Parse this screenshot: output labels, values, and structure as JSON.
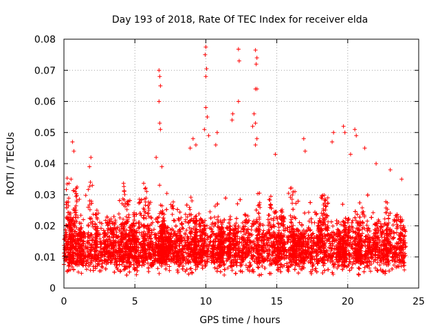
{
  "chart_data": {
    "type": "scatter",
    "title": "Day 193 of 2018, Rate Of TEC Index for receiver elda",
    "xlabel": "GPS time / hours",
    "ylabel": "ROTI / TECUs",
    "xlim": [
      0,
      25
    ],
    "ylim": [
      0,
      0.08
    ],
    "x_ticks": [
      0,
      5,
      10,
      15,
      20,
      25
    ],
    "x_tick_labels": [
      "0",
      "5",
      "10",
      "15",
      "20",
      "25"
    ],
    "y_ticks": [
      0,
      0.01,
      0.02,
      0.03,
      0.04,
      0.05,
      0.06,
      0.07,
      0.08
    ],
    "y_tick_labels": [
      "0",
      "0.01",
      "0.02",
      "0.03",
      "0.04",
      "0.05",
      "0.06",
      "0.07",
      "0.08"
    ],
    "grid": true,
    "marker": "plus",
    "color": "#ff0000",
    "series": [
      {
        "name": "ROTI",
        "description_points": [
          [
            0.6,
            0.047
          ],
          [
            0.7,
            0.044
          ],
          [
            0.5,
            0.035
          ],
          [
            1.9,
            0.042
          ],
          [
            1.8,
            0.039
          ],
          [
            2.0,
            0.033
          ],
          [
            6.7,
            0.07
          ],
          [
            6.75,
            0.068
          ],
          [
            6.8,
            0.065
          ],
          [
            6.7,
            0.06
          ],
          [
            6.75,
            0.053
          ],
          [
            6.8,
            0.051
          ],
          [
            6.5,
            0.042
          ],
          [
            6.9,
            0.039
          ],
          [
            9.1,
            0.048
          ],
          [
            9.3,
            0.046
          ],
          [
            8.9,
            0.045
          ],
          [
            10.0,
            0.0775
          ],
          [
            9.95,
            0.075
          ],
          [
            10.05,
            0.0705
          ],
          [
            10.0,
            0.068
          ],
          [
            10.0,
            0.058
          ],
          [
            10.1,
            0.055
          ],
          [
            9.9,
            0.051
          ],
          [
            10.2,
            0.049
          ],
          [
            10.7,
            0.046
          ],
          [
            10.8,
            0.05
          ],
          [
            11.9,
            0.056
          ],
          [
            11.85,
            0.054
          ],
          [
            12.3,
            0.0768
          ],
          [
            12.35,
            0.073
          ],
          [
            12.3,
            0.06
          ],
          [
            13.5,
            0.0765
          ],
          [
            13.6,
            0.074
          ],
          [
            13.55,
            0.072
          ],
          [
            13.5,
            0.064
          ],
          [
            13.6,
            0.064
          ],
          [
            13.4,
            0.056
          ],
          [
            13.5,
            0.053
          ],
          [
            13.3,
            0.052
          ],
          [
            13.6,
            0.048
          ],
          [
            13.5,
            0.046
          ],
          [
            14.9,
            0.043
          ],
          [
            16.9,
            0.048
          ],
          [
            17.0,
            0.044
          ],
          [
            19.0,
            0.05
          ],
          [
            18.9,
            0.047
          ],
          [
            19.7,
            0.052
          ],
          [
            19.8,
            0.05
          ],
          [
            20.5,
            0.051
          ],
          [
            20.6,
            0.049
          ],
          [
            20.2,
            0.043
          ],
          [
            21.2,
            0.045
          ],
          [
            22.0,
            0.04
          ],
          [
            23.0,
            0.038
          ],
          [
            23.8,
            0.035
          ]
        ]
      }
    ],
    "bands": {
      "note": "dense cluster of points with baseline near 0.004-0.02 TECU and spikes across 0-24 h",
      "hours": [
        0,
        24
      ]
    }
  }
}
